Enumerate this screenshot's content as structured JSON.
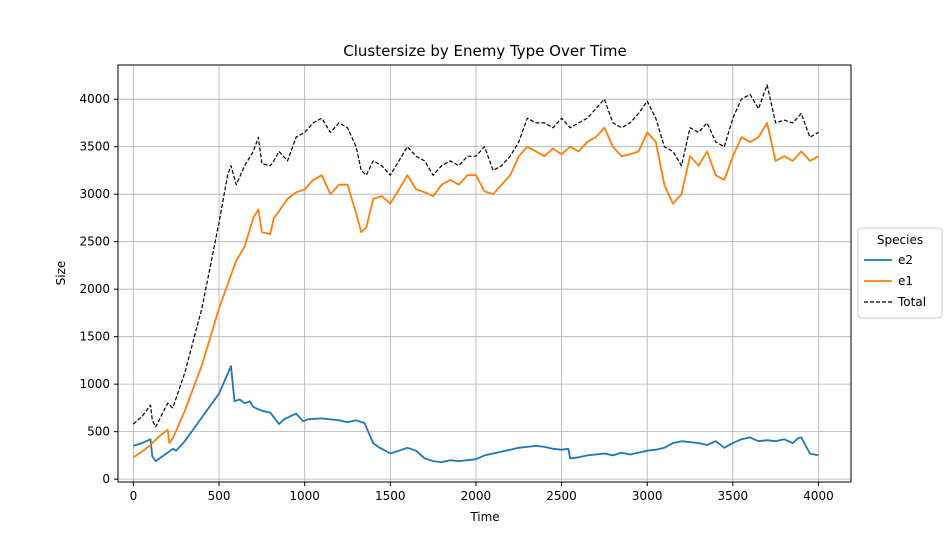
{
  "chart_data": {
    "type": "line",
    "title": "Clustersize by Enemy Type Over Time",
    "xlabel": "Time",
    "ylabel": "Size",
    "xlim": [
      -90,
      4190
    ],
    "ylim": [
      -30,
      4360
    ],
    "xticks": [
      0,
      500,
      1000,
      1500,
      2000,
      2500,
      3000,
      3500,
      4000
    ],
    "yticks": [
      0,
      500,
      1000,
      1500,
      2000,
      2500,
      3000,
      3500,
      4000
    ],
    "grid": true,
    "legend": {
      "title": "Species",
      "placement": "outside-right"
    },
    "series": [
      {
        "name": "e2",
        "color": "#1f77b4",
        "style": "solid",
        "x": [
          0,
          50,
          100,
          110,
          130,
          200,
          230,
          250,
          300,
          400,
          500,
          570,
          590,
          620,
          650,
          680,
          700,
          750,
          800,
          850,
          880,
          950,
          990,
          1020,
          1100,
          1200,
          1250,
          1300,
          1350,
          1400,
          1430,
          1470,
          1500,
          1550,
          1600,
          1650,
          1700,
          1750,
          1800,
          1850,
          1900,
          1950,
          2000,
          2050,
          2100,
          2150,
          2200,
          2250,
          2300,
          2350,
          2400,
          2450,
          2500,
          2540,
          2550,
          2600,
          2650,
          2700,
          2750,
          2800,
          2850,
          2900,
          2950,
          3000,
          3050,
          3100,
          3150,
          3200,
          3250,
          3300,
          3350,
          3400,
          3450,
          3500,
          3550,
          3600,
          3650,
          3700,
          3750,
          3800,
          3850,
          3880,
          3900,
          3950,
          4000
        ],
        "values": [
          350,
          380,
          420,
          240,
          190,
          280,
          320,
          300,
          400,
          650,
          900,
          1190,
          820,
          840,
          800,
          820,
          760,
          720,
          700,
          580,
          630,
          690,
          610,
          630,
          640,
          620,
          600,
          620,
          590,
          380,
          340,
          300,
          270,
          300,
          330,
          300,
          220,
          190,
          180,
          200,
          190,
          200,
          210,
          250,
          270,
          290,
          310,
          330,
          340,
          350,
          340,
          320,
          310,
          320,
          220,
          230,
          250,
          260,
          270,
          250,
          280,
          260,
          280,
          300,
          310,
          330,
          380,
          400,
          390,
          380,
          360,
          400,
          330,
          380,
          420,
          440,
          400,
          410,
          400,
          420,
          380,
          430,
          440,
          270,
          250
        ]
      },
      {
        "name": "e1",
        "color": "#ff7f0e",
        "style": "solid",
        "x": [
          0,
          50,
          100,
          150,
          200,
          210,
          230,
          300,
          400,
          500,
          600,
          650,
          700,
          730,
          750,
          800,
          820,
          850,
          900,
          950,
          1000,
          1050,
          1100,
          1150,
          1200,
          1250,
          1300,
          1330,
          1360,
          1400,
          1450,
          1500,
          1550,
          1600,
          1650,
          1700,
          1750,
          1800,
          1850,
          1900,
          1950,
          2000,
          2050,
          2100,
          2150,
          2200,
          2250,
          2300,
          2350,
          2400,
          2450,
          2500,
          2550,
          2600,
          2650,
          2700,
          2750,
          2800,
          2850,
          2900,
          2950,
          3000,
          3050,
          3100,
          3150,
          3200,
          3250,
          3300,
          3350,
          3400,
          3450,
          3500,
          3550,
          3600,
          3650,
          3700,
          3750,
          3800,
          3850,
          3900,
          3950,
          4000
        ],
        "values": [
          230,
          290,
          360,
          450,
          520,
          380,
          430,
          720,
          1200,
          1800,
          2300,
          2450,
          2750,
          2840,
          2600,
          2580,
          2750,
          2820,
          2950,
          3020,
          3050,
          3150,
          3200,
          3000,
          3100,
          3100,
          2800,
          2600,
          2650,
          2950,
          2980,
          2900,
          3050,
          3200,
          3050,
          3020,
          2980,
          3100,
          3150,
          3100,
          3200,
          3200,
          3030,
          3000,
          3100,
          3200,
          3400,
          3500,
          3450,
          3400,
          3480,
          3420,
          3500,
          3450,
          3550,
          3600,
          3700,
          3500,
          3400,
          3420,
          3450,
          3650,
          3550,
          3100,
          2900,
          3000,
          3400,
          3300,
          3450,
          3200,
          3150,
          3400,
          3600,
          3550,
          3600,
          3750,
          3350,
          3400,
          3350,
          3450,
          3350,
          3400
        ]
      },
      {
        "name": "Total",
        "color": "#000000",
        "style": "dashed",
        "x": [
          0,
          50,
          100,
          110,
          130,
          200,
          230,
          300,
          400,
          500,
          550,
          570,
          600,
          650,
          700,
          730,
          750,
          800,
          820,
          850,
          900,
          950,
          1000,
          1050,
          1100,
          1150,
          1200,
          1250,
          1300,
          1330,
          1360,
          1400,
          1450,
          1500,
          1550,
          1600,
          1650,
          1700,
          1750,
          1800,
          1850,
          1900,
          1950,
          2000,
          2050,
          2100,
          2150,
          2200,
          2250,
          2300,
          2350,
          2400,
          2450,
          2500,
          2550,
          2600,
          2650,
          2700,
          2750,
          2800,
          2850,
          2900,
          2950,
          3000,
          3050,
          3100,
          3150,
          3200,
          3250,
          3300,
          3350,
          3400,
          3450,
          3500,
          3550,
          3600,
          3650,
          3700,
          3750,
          3800,
          3850,
          3900,
          3950,
          4000
        ],
        "values": [
          580,
          660,
          780,
          620,
          550,
          800,
          750,
          1120,
          1800,
          2700,
          3200,
          3300,
          3100,
          3300,
          3450,
          3600,
          3320,
          3300,
          3350,
          3450,
          3350,
          3600,
          3650,
          3750,
          3800,
          3650,
          3750,
          3700,
          3500,
          3250,
          3200,
          3350,
          3300,
          3200,
          3350,
          3500,
          3400,
          3350,
          3200,
          3300,
          3350,
          3300,
          3400,
          3400,
          3500,
          3250,
          3300,
          3400,
          3550,
          3800,
          3750,
          3750,
          3700,
          3800,
          3700,
          3750,
          3800,
          3900,
          4000,
          3750,
          3700,
          3750,
          3850,
          3980,
          3800,
          3500,
          3450,
          3300,
          3700,
          3650,
          3750,
          3550,
          3500,
          3800,
          4000,
          4050,
          3900,
          4150,
          3750,
          3780,
          3750,
          3850,
          3600,
          3650
        ]
      }
    ]
  }
}
